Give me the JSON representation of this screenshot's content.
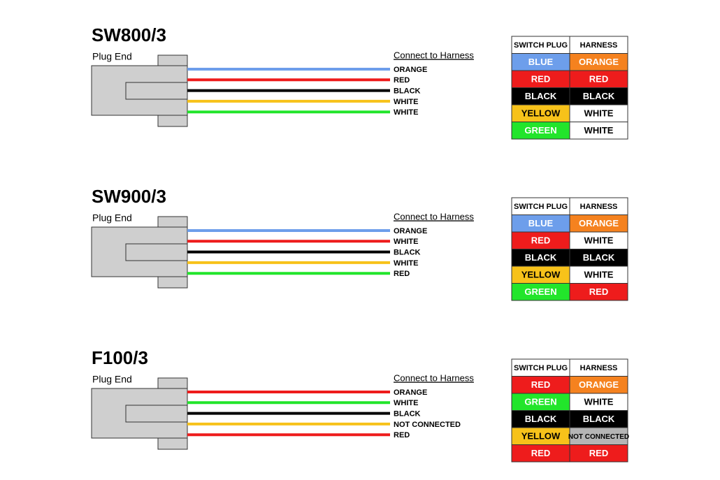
{
  "diagrams": [
    {
      "title": "SW800/3",
      "plug_label": "Plug End",
      "connect_label": "Connect to Harness",
      "wire_labels": [
        "ORANGE",
        "RED",
        "BLACK",
        "WHITE",
        "WHITE"
      ],
      "table": {
        "header": [
          "SWITCH PLUG",
          "HARNESS"
        ],
        "rows": [
          [
            "BLUE",
            "ORANGE"
          ],
          [
            "RED",
            "RED"
          ],
          [
            "BLACK",
            "BLACK"
          ],
          [
            "YELLOW",
            "WHITE"
          ],
          [
            "GREEN",
            "WHITE"
          ]
        ]
      }
    },
    {
      "title": "SW900/3",
      "plug_label": "Plug End",
      "connect_label": "Connect to Harness",
      "wire_labels": [
        "ORANGE",
        "WHITE",
        "BLACK",
        "WHITE",
        "RED"
      ],
      "table": {
        "header": [
          "SWITCH PLUG",
          "HARNESS"
        ],
        "rows": [
          [
            "BLUE",
            "ORANGE"
          ],
          [
            "RED",
            "WHITE"
          ],
          [
            "BLACK",
            "BLACK"
          ],
          [
            "YELLOW",
            "WHITE"
          ],
          [
            "GREEN",
            "RED"
          ]
        ]
      }
    },
    {
      "title": "F100/3",
      "plug_label": "Plug End",
      "connect_label": "Connect to Harness",
      "wire_labels": [
        "ORANGE",
        "WHITE",
        "BLACK",
        "NOT CONNECTED",
        "RED"
      ],
      "table": {
        "header": [
          "SWITCH PLUG",
          "HARNESS"
        ],
        "rows": [
          [
            "RED",
            "ORANGE"
          ],
          [
            "GREEN",
            "WHITE"
          ],
          [
            "BLACK",
            "BLACK"
          ],
          [
            "YELLOW",
            "NOT CONNECTED"
          ],
          [
            "RED",
            "RED"
          ]
        ]
      }
    }
  ]
}
